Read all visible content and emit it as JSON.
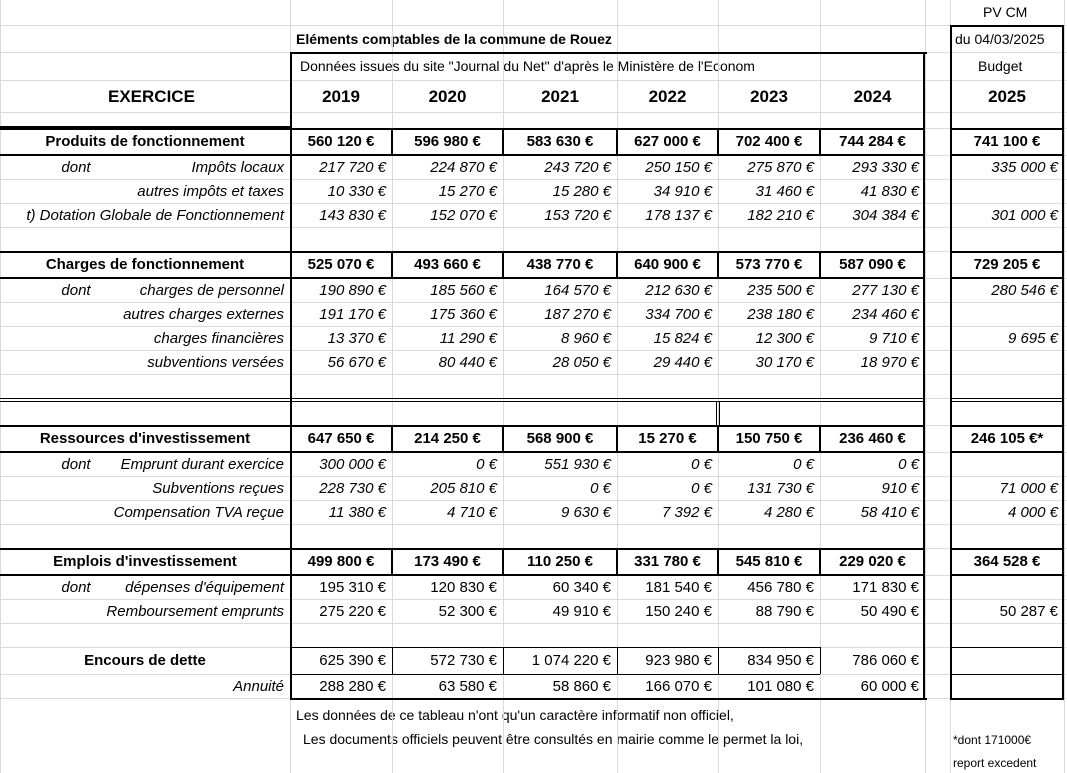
{
  "header": {
    "pv": "PV CM",
    "title": "Eléments comptables de la commune de Rouez",
    "date": "du 04/03/2025",
    "source": "Données issues du site   \"Journal du Net\" d'après le Ministère de l'Econom",
    "budget": "Budget",
    "exercice": "EXERCICE",
    "years": [
      "2019",
      "2020",
      "2021",
      "2022",
      "2023",
      "2024",
      "2025"
    ]
  },
  "rows": [
    {
      "kind": "blank"
    },
    {
      "kind": "total",
      "label": "Produits de fonctionnement",
      "values": [
        "560 120 €",
        "596 980 €",
        "583 630 €",
        "627 000 €",
        "702 400 €",
        "744 284 €",
        "741 100 €"
      ]
    },
    {
      "kind": "detail",
      "dont": "dont",
      "label": "Impôts locaux",
      "values": [
        "217 720 €",
        "224 870 €",
        "243 720 €",
        "250 150 €",
        "275 870 €",
        "293 330 €",
        "335 000 €"
      ]
    },
    {
      "kind": "detail",
      "label": "autres impôts et taxes",
      "values": [
        "10 330 €",
        "15 270 €",
        "15 280 €",
        "34 910 €",
        "31 460 €",
        "41 830 €",
        null
      ]
    },
    {
      "kind": "detail",
      "label": "t) Dotation Globale de Fonctionnement",
      "values": [
        "143 830 €",
        "152 070 €",
        "153 720 €",
        "178 137 €",
        "182 210 €",
        "304 384 €",
        "301 000 €"
      ]
    },
    {
      "kind": "blank"
    },
    {
      "kind": "total",
      "label": "Charges de fonctionnement",
      "values": [
        "525 070 €",
        "493 660 €",
        "438 770 €",
        "640 900 €",
        "573 770 €",
        "587 090 €",
        "729 205 €"
      ]
    },
    {
      "kind": "detail",
      "dont": "dont",
      "label": "charges de personnel",
      "values": [
        "190 890 €",
        "185 560 €",
        "164 570 €",
        "212 630 €",
        "235 500 €",
        "277 130 €",
        "280 546 €"
      ]
    },
    {
      "kind": "detail",
      "label": "autres charges externes",
      "values": [
        "191 170 €",
        "175 360 €",
        "187 270 €",
        "334 700 €",
        "238 180 €",
        "234 460 €",
        null
      ]
    },
    {
      "kind": "detail",
      "label": "charges financières",
      "values": [
        "13 370 €",
        "11 290 €",
        "8 960 €",
        "15 824 €",
        "12 300 €",
        "9 710 €",
        "9 695 €"
      ]
    },
    {
      "kind": "detail",
      "label": "subventions versées",
      "values": [
        "56 670 €",
        "80 440 €",
        "28 050 €",
        "29 440 €",
        "30 170 €",
        "18 970 €",
        null
      ]
    },
    {
      "kind": "blank"
    },
    {
      "kind": "separator"
    },
    {
      "kind": "total",
      "label": "Ressources d'investissement",
      "values": [
        "647 650 €",
        "214 250 €",
        "568 900 €",
        "15 270 €",
        "150 750 €",
        "236 460 €",
        "246 105 €*"
      ]
    },
    {
      "kind": "detail",
      "dont": "dont",
      "label": "Emprunt durant exercice",
      "values": [
        "300 000 €",
        "0 €",
        "551 930 €",
        "0 €",
        "0 €",
        "0 €",
        null
      ]
    },
    {
      "kind": "detail",
      "label": "Subventions reçues",
      "values": [
        "228 730 €",
        "205 810 €",
        "0 €",
        "0 €",
        "131 730 €",
        "910 €",
        "71 000 €"
      ]
    },
    {
      "kind": "detail",
      "label": "Compensation TVA reçue",
      "values": [
        "11 380 €",
        "4 710 €",
        "9 630 €",
        "7 392 €",
        "4 280 €",
        "58 410 €",
        "4 000 €"
      ]
    },
    {
      "kind": "blank"
    },
    {
      "kind": "total",
      "label": "Emplois d'investissement",
      "values": [
        "499 800 €",
        "173 490 €",
        "110 250 €",
        "331 780 €",
        "545 810 €",
        "229 020 €",
        "364 528 €"
      ]
    },
    {
      "kind": "detail-plain",
      "dont": "dont",
      "label": "dépenses d'équipement",
      "values": [
        "195 310 €",
        "120 830 €",
        "60 340 €",
        "181 540 €",
        "456 780 €",
        "171 830 €",
        null
      ]
    },
    {
      "kind": "detail-plain",
      "label": "Remboursement emprunts",
      "values": [
        "275 220 €",
        "52 300 €",
        "49 910 €",
        "150 240 €",
        "88 790 €",
        "50 490 €",
        "50 287 €"
      ]
    },
    {
      "kind": "blank"
    },
    {
      "kind": "debt",
      "label": "Encours de dette",
      "values": [
        "625 390 €",
        "572 730 €",
        "1 074 220 €",
        "923 980 €",
        "834 950 €",
        "786 060 €",
        null
      ]
    },
    {
      "kind": "detail-plain",
      "label": "Annuité",
      "values": [
        "288 280 €",
        "63 580 €",
        "58 860 €",
        "166 070 €",
        "101 080 €",
        "60 000 €",
        null
      ]
    }
  ],
  "footer": {
    "note1": "Les données de ce tableau n'ont qu'un caractère informatif non officiel,",
    "note2": "Les documents officiels peuvent être consultés en mairie comme le permet la loi,",
    "asterisk": "*dont 171000€",
    "report": "report excedent"
  }
}
